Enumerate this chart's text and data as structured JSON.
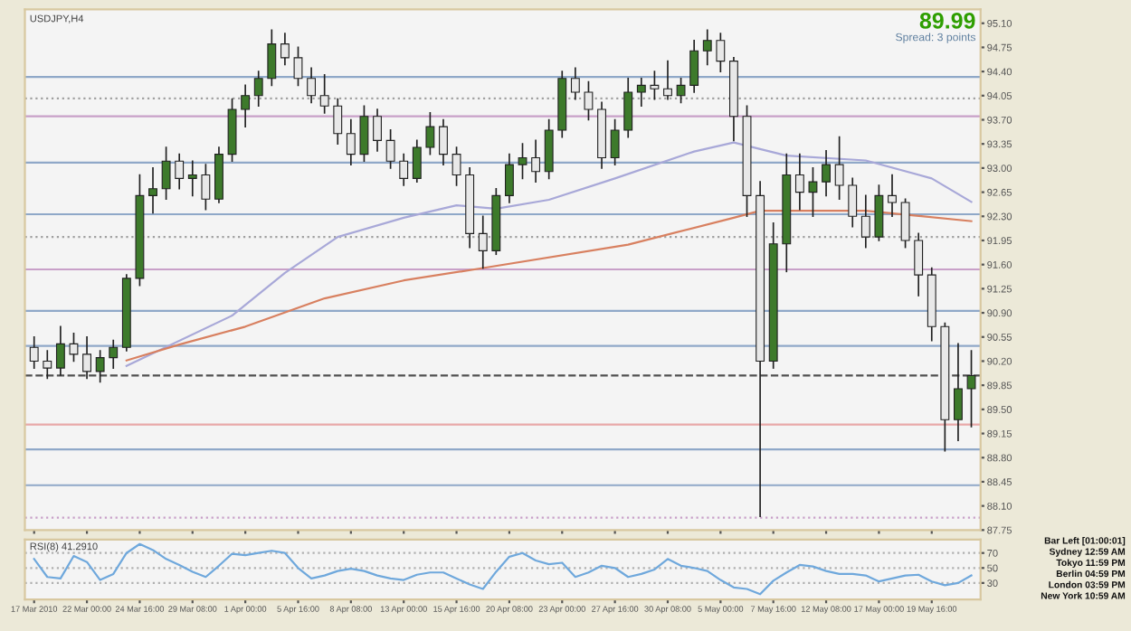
{
  "chart_data": [
    {
      "type": "candlestick",
      "title": "USDJPY,H4",
      "annotations": [
        "89.99",
        "Spread: 3 points"
      ],
      "categories": [
        null,
        null,
        null,
        null,
        null,
        null,
        null,
        null,
        null,
        null,
        null,
        null,
        null,
        null,
        null,
        null,
        null,
        null,
        null,
        null,
        null,
        null,
        null,
        null,
        null,
        null,
        null,
        null,
        null,
        null,
        null,
        null,
        null,
        null,
        null,
        null,
        null,
        null,
        null,
        null,
        null,
        null,
        null,
        null,
        null,
        null,
        null,
        null,
        null,
        null,
        null,
        null,
        null,
        null,
        null,
        null,
        null,
        null,
        null,
        null,
        null,
        null,
        null,
        null,
        null,
        null,
        null,
        null,
        null,
        null,
        null,
        null
      ],
      "ohlc": [
        [
          90.4,
          90.55,
          90.1,
          90.2
        ],
        [
          90.2,
          90.35,
          89.95,
          90.1
        ],
        [
          90.1,
          90.7,
          90.0,
          90.45
        ],
        [
          90.45,
          90.6,
          90.2,
          90.3
        ],
        [
          90.3,
          90.55,
          89.95,
          90.05
        ],
        [
          90.05,
          90.35,
          89.9,
          90.25
        ],
        [
          90.25,
          90.5,
          90.1,
          90.4
        ],
        [
          90.4,
          91.45,
          90.35,
          91.4
        ],
        [
          91.4,
          92.9,
          91.3,
          92.6
        ],
        [
          92.6,
          93.0,
          92.35,
          92.7
        ],
        [
          92.7,
          93.3,
          92.55,
          93.1
        ],
        [
          93.1,
          93.2,
          92.7,
          92.85
        ],
        [
          92.85,
          93.1,
          92.6,
          92.9
        ],
        [
          92.9,
          93.05,
          92.4,
          92.55
        ],
        [
          92.55,
          93.3,
          92.5,
          93.2
        ],
        [
          93.2,
          94.0,
          93.1,
          93.85
        ],
        [
          93.85,
          94.2,
          93.6,
          94.05
        ],
        [
          94.05,
          94.4,
          93.9,
          94.3
        ],
        [
          94.3,
          95.0,
          94.2,
          94.8
        ],
        [
          94.8,
          94.95,
          94.5,
          94.6
        ],
        [
          94.6,
          94.75,
          94.2,
          94.3
        ],
        [
          94.3,
          94.45,
          93.95,
          94.05
        ],
        [
          94.05,
          94.35,
          93.8,
          93.9
        ],
        [
          93.9,
          94.0,
          93.35,
          93.5
        ],
        [
          93.5,
          93.7,
          93.05,
          93.2
        ],
        [
          93.2,
          93.9,
          93.1,
          93.75
        ],
        [
          93.75,
          93.85,
          93.25,
          93.4
        ],
        [
          93.4,
          93.55,
          93.0,
          93.1
        ],
        [
          93.1,
          93.2,
          92.75,
          92.85
        ],
        [
          92.85,
          93.4,
          92.8,
          93.3
        ],
        [
          93.3,
          93.8,
          93.2,
          93.6
        ],
        [
          93.6,
          93.7,
          93.05,
          93.2
        ],
        [
          93.2,
          93.3,
          92.75,
          92.9
        ],
        [
          92.9,
          93.0,
          91.85,
          92.05
        ],
        [
          92.05,
          92.3,
          91.55,
          91.8
        ],
        [
          91.8,
          92.7,
          91.75,
          92.6
        ],
        [
          92.6,
          93.2,
          92.5,
          93.05
        ],
        [
          93.05,
          93.35,
          92.85,
          93.15
        ],
        [
          93.15,
          93.4,
          92.8,
          92.95
        ],
        [
          92.95,
          93.7,
          92.85,
          93.55
        ],
        [
          93.55,
          94.4,
          93.45,
          94.3
        ],
        [
          94.3,
          94.45,
          94.0,
          94.1
        ],
        [
          94.1,
          94.25,
          93.7,
          93.85
        ],
        [
          93.85,
          93.95,
          93.0,
          93.15
        ],
        [
          93.15,
          93.7,
          93.05,
          93.55
        ],
        [
          93.55,
          94.3,
          93.45,
          94.1
        ],
        [
          94.1,
          94.3,
          93.9,
          94.2
        ],
        [
          94.2,
          94.4,
          94.0,
          94.15
        ],
        [
          94.15,
          94.55,
          94.0,
          94.05
        ],
        [
          94.05,
          94.3,
          93.95,
          94.2
        ],
        [
          94.2,
          94.85,
          94.1,
          94.7
        ],
        [
          94.7,
          95.0,
          94.5,
          94.85
        ],
        [
          94.85,
          94.95,
          94.4,
          94.55
        ],
        [
          94.55,
          94.6,
          93.4,
          93.75
        ],
        [
          93.75,
          93.9,
          92.3,
          92.6
        ],
        [
          92.6,
          92.8,
          87.95,
          90.2
        ],
        [
          90.2,
          92.2,
          90.1,
          91.9
        ],
        [
          91.9,
          93.2,
          91.5,
          92.9
        ],
        [
          92.9,
          93.2,
          92.4,
          92.65
        ],
        [
          92.65,
          93.0,
          92.3,
          92.8
        ],
        [
          92.8,
          93.25,
          92.6,
          93.05
        ],
        [
          93.05,
          93.45,
          92.55,
          92.75
        ],
        [
          92.75,
          92.85,
          92.15,
          92.3
        ],
        [
          92.3,
          92.6,
          91.85,
          92.0
        ],
        [
          92.0,
          92.75,
          91.95,
          92.6
        ],
        [
          92.6,
          92.9,
          92.3,
          92.5
        ],
        [
          92.5,
          92.55,
          91.85,
          91.95
        ],
        [
          91.95,
          92.05,
          91.15,
          91.45
        ],
        [
          91.45,
          91.55,
          90.5,
          90.7
        ],
        [
          90.7,
          90.75,
          88.9,
          89.35
        ],
        [
          89.35,
          90.45,
          89.05,
          89.8
        ],
        [
          89.8,
          90.35,
          89.25,
          89.99
        ]
      ],
      "series": [
        {
          "type": "line",
          "color": "#a8a8d8",
          "values": [
            null,
            null,
            null,
            null,
            null,
            null,
            null,
            90.13,
            null,
            null,
            null,
            null,
            null,
            null,
            null,
            90.86,
            null,
            null,
            null,
            91.48,
            null,
            null,
            null,
            92.0,
            null,
            null,
            null,
            null,
            92.28,
            null,
            null,
            null,
            92.46,
            null,
            null,
            92.41,
            null,
            null,
            null,
            92.54,
            null,
            null,
            null,
            null,
            92.85,
            null,
            null,
            null,
            null,
            null,
            93.24,
            null,
            null,
            93.37,
            null,
            null,
            null,
            93.18,
            null,
            null,
            null,
            null,
            null,
            93.11,
            null,
            null,
            null,
            null,
            92.85,
            null,
            null,
            92.51
          ]
        },
        {
          "type": "line",
          "color": "#d88060",
          "values": [
            null,
            null,
            null,
            null,
            null,
            null,
            null,
            90.21,
            null,
            null,
            null,
            90.44,
            null,
            null,
            null,
            null,
            90.7,
            null,
            null,
            null,
            null,
            null,
            91.11,
            null,
            null,
            null,
            null,
            null,
            91.37,
            null,
            null,
            null,
            null,
            null,
            91.55,
            null,
            null,
            null,
            null,
            null,
            null,
            null,
            null,
            null,
            null,
            91.89,
            null,
            null,
            null,
            null,
            null,
            null,
            null,
            92.28,
            null,
            92.38,
            null,
            null,
            null,
            null,
            null,
            null,
            null,
            92.38,
            null,
            null,
            null,
            null,
            null,
            null,
            null,
            92.23
          ]
        }
      ],
      "ref_lines": [
        {
          "axis": "y",
          "value": 94.32,
          "color": "#8fa8c8",
          "line_style": "solid"
        },
        {
          "axis": "y",
          "value": 94.01,
          "color": "#a0a0a0",
          "line_style": "dotted"
        },
        {
          "axis": "y",
          "value": 93.75,
          "color": "#c8a0c8",
          "line_style": "solid"
        },
        {
          "axis": "y",
          "value": 93.08,
          "color": "#8fa8c8",
          "line_style": "solid"
        },
        {
          "axis": "y",
          "value": 92.33,
          "color": "#8fa8c8",
          "line_style": "solid"
        },
        {
          "axis": "y",
          "value": 92.0,
          "color": "#a0a0a0",
          "line_style": "dotted"
        },
        {
          "axis": "y",
          "value": 91.53,
          "color": "#c8a0c8",
          "line_style": "solid"
        },
        {
          "axis": "y",
          "value": 90.93,
          "color": "#8fa8c8",
          "line_style": "solid"
        },
        {
          "axis": "y",
          "value": 90.42,
          "color": "#8fa8c8",
          "line_style": "solid"
        },
        {
          "axis": "y",
          "value": 89.99,
          "color": "#505050",
          "line_style": "dashed"
        },
        {
          "axis": "y",
          "value": 89.28,
          "color": "#e8a8a8",
          "line_style": "solid"
        },
        {
          "axis": "y",
          "value": 88.92,
          "color": "#8fa8c8",
          "line_style": "solid"
        },
        {
          "axis": "y",
          "value": 88.4,
          "color": "#8fa8c8",
          "line_style": "solid"
        },
        {
          "axis": "y",
          "value": 87.93,
          "color": "#c8a0c8",
          "line_style": "dotted"
        }
      ],
      "ylim": [
        87.75,
        95.3
      ],
      "yticks": [
        87.75,
        {
          "value": 88.1,
          "label": "88.10"
        },
        88.45,
        {
          "value": 88.8,
          "label": "88.80"
        },
        89.15,
        {
          "value": 89.5,
          "label": "89.50"
        },
        89.85,
        {
          "value": 90.2,
          "label": "90.20"
        },
        90.55,
        {
          "value": 90.9,
          "label": "90.90"
        },
        91.25,
        {
          "value": 91.6,
          "label": "91.60"
        },
        91.95,
        {
          "value": 92.3,
          "label": "92.30"
        },
        92.65,
        {
          "value": 93.0,
          "label": "93.00"
        },
        93.35,
        {
          "value": 93.7,
          "label": "93.70"
        },
        94.05,
        {
          "value": 94.4,
          "label": "94.40"
        },
        94.75,
        {
          "value": 95.1,
          "label": "95.10"
        }
      ],
      "tick_labels": "y",
      "grid": false
    },
    {
      "type": "line",
      "title": "RSI(8) 41.2910",
      "annotations": [
        "Bar Left [01:00:01]",
        "Sydney 12:59 AM",
        "Tokyo 11:59 PM",
        "Berlin 04:59 PM",
        "London 03:59 PM",
        "New York 10:59 AM"
      ],
      "categories": [
        "17 Mar 2010",
        null,
        null,
        null,
        "22 Mar 00:00",
        null,
        null,
        null,
        "24 Mar 16:00",
        null,
        null,
        null,
        "29 Mar 08:00",
        null,
        null,
        null,
        "1 Apr 00:00",
        null,
        null,
        null,
        "5 Apr 16:00",
        null,
        null,
        null,
        "8 Apr 08:00",
        null,
        null,
        null,
        "13 Apr 00:00",
        null,
        null,
        null,
        "15 Apr 16:00",
        null,
        null,
        null,
        "20 Apr 08:00",
        null,
        null,
        null,
        "23 Apr 00:00",
        null,
        null,
        null,
        "27 Apr 16:00",
        null,
        null,
        null,
        "30 Apr 08:00",
        null,
        null,
        null,
        "5 May 00:00",
        null,
        null,
        null,
        "7 May 16:00",
        null,
        null,
        null,
        "12 May 08:00",
        null,
        null,
        null,
        "17 May 00:00",
        null,
        null,
        null,
        "19 May 16:00",
        null,
        null,
        null
      ],
      "series": [
        {
          "color": "#6fa8dc",
          "values": [
            62,
            38,
            36,
            66,
            58,
            34,
            42,
            70,
            82,
            74,
            62,
            54,
            45,
            38,
            53,
            69,
            67,
            70,
            73,
            70,
            50,
            36,
            40,
            46,
            49,
            46,
            40,
            36,
            34,
            41,
            44,
            44,
            36,
            28,
            22,
            45,
            65,
            70,
            60,
            55,
            57,
            38,
            44,
            53,
            50,
            38,
            42,
            48,
            62,
            53,
            50,
            46,
            34,
            24,
            22,
            15,
            33,
            44,
            54,
            52,
            46,
            42,
            42,
            40,
            32,
            36,
            40,
            41,
            32,
            27,
            30,
            40
          ]
        }
      ],
      "ref_lines": [
        {
          "axis": "y",
          "value": 70,
          "color": "#b0b0b0",
          "line_style": "dotted"
        },
        {
          "axis": "y",
          "value": 50,
          "color": "#b0b0b0",
          "line_style": "dotted"
        },
        {
          "axis": "y",
          "value": 30,
          "color": "#b0b0b0",
          "line_style": "dotted"
        }
      ],
      "ylim": [
        8,
        88
      ],
      "yticks": [
        30,
        50,
        70
      ],
      "grid": false
    }
  ]
}
